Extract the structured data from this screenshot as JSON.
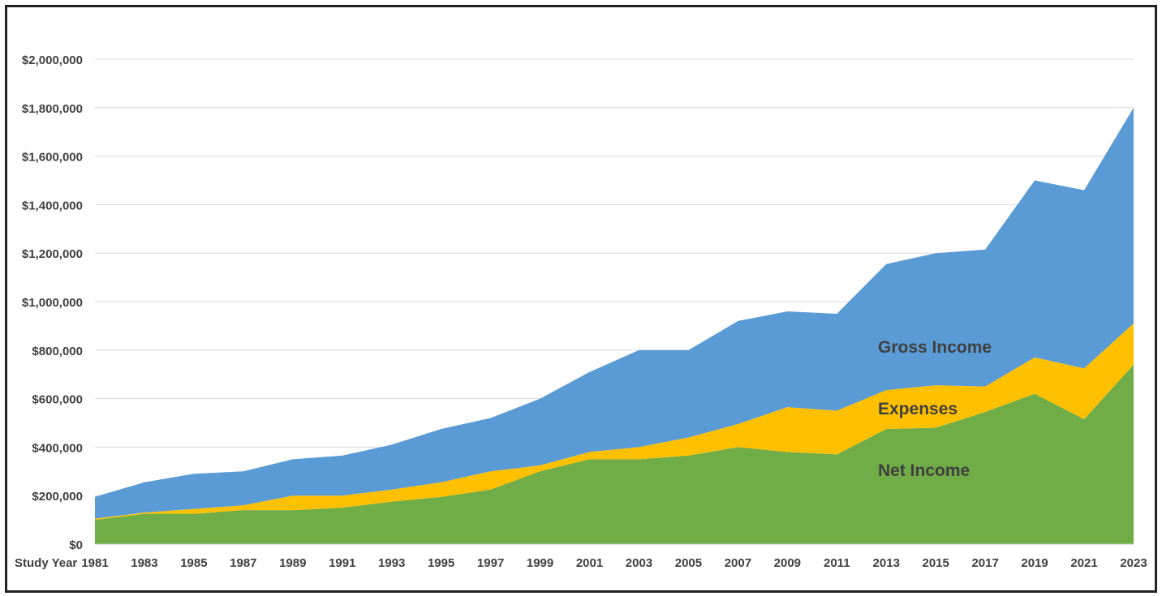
{
  "chart_data": {
    "type": "area",
    "stacked": true,
    "x_axis_label": "Study Year",
    "x": [
      1981,
      1983,
      1985,
      1987,
      1989,
      1991,
      1993,
      1995,
      1997,
      1999,
      2001,
      2003,
      2005,
      2007,
      2009,
      2011,
      2013,
      2015,
      2017,
      2019,
      2021,
      2023
    ],
    "x_tick_labels": [
      "1981",
      "1983",
      "1985",
      "1987",
      "1989",
      "1991",
      "1993",
      "1995",
      "1997",
      "1999",
      "2001",
      "2003",
      "2005",
      "2007",
      "2009",
      "2011",
      "2013",
      "2015",
      "2017",
      "2019",
      "2021",
      "2023"
    ],
    "ylim": [
      0,
      2000000
    ],
    "y_tick_labels": [
      "$0",
      "$200,000",
      "$400,000",
      "$600,000",
      "$800,000",
      "$1,000,000",
      "$1,200,000",
      "$1,400,000",
      "$1,600,000",
      "$1,800,000",
      "$2,000,000"
    ],
    "y_ticks": [
      0,
      200000,
      400000,
      600000,
      800000,
      1000000,
      1200000,
      1400000,
      1600000,
      1800000,
      2000000
    ],
    "grid": true,
    "series": [
      {
        "name": "Net Income",
        "color": "#70AD47",
        "values": [
          100000,
          125000,
          125000,
          140000,
          140000,
          150000,
          175000,
          195000,
          225000,
          300000,
          350000,
          350000,
          365000,
          400000,
          380000,
          370000,
          475000,
          480000,
          545000,
          620000,
          515000,
          740000
        ]
      },
      {
        "name": "Expenses",
        "color": "#FFC000",
        "values": [
          5000,
          5000,
          20000,
          20000,
          60000,
          50000,
          50000,
          60000,
          75000,
          25000,
          30000,
          50000,
          75000,
          95000,
          185000,
          180000,
          160000,
          175000,
          105000,
          150000,
          210000,
          170000
        ]
      },
      {
        "name": "Gross Income",
        "color": "#5B9BD5",
        "values": [
          90000,
          125000,
          145000,
          140000,
          150000,
          165000,
          185000,
          220000,
          220000,
          275000,
          330000,
          400000,
          360000,
          425000,
          395000,
          400000,
          520000,
          545000,
          565000,
          730000,
          735000,
          890000
        ]
      }
    ]
  }
}
